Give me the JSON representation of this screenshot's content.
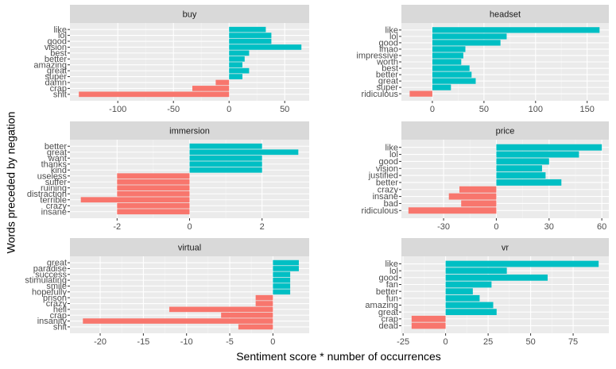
{
  "axis_titles": {
    "x": "Sentiment score * number of occurrences",
    "y": "Words preceded by negation"
  },
  "colors": {
    "positive": "#00BFC4",
    "negative": "#F8766D",
    "panel_bg": "#EBEBEB",
    "strip_bg": "#D9D9D9",
    "grid_major": "#FFFFFF",
    "tick_text": "#4D4D4D"
  },
  "chart_data": [
    {
      "type": "bar",
      "orientation": "horizontal",
      "title": "buy",
      "categories": [
        "like",
        "lol",
        "good",
        "vision",
        "best",
        "better",
        "amazing",
        "great",
        "super",
        "damn",
        "crap",
        "shit"
      ],
      "values": [
        33,
        38,
        38,
        65,
        18,
        14,
        12,
        18,
        12,
        -12,
        -33,
        -135
      ],
      "xlim": [
        -143,
        72
      ],
      "xticks": [
        -100,
        -50,
        0,
        50
      ]
    },
    {
      "type": "bar",
      "orientation": "horizontal",
      "title": "headset",
      "categories": [
        "like",
        "lol",
        "good",
        "lmao",
        "impressive",
        "worth",
        "best",
        "better",
        "great",
        "super",
        "ridiculous"
      ],
      "values": [
        162,
        72,
        66,
        32,
        30,
        28,
        36,
        38,
        42,
        18,
        -22
      ],
      "xlim": [
        -30,
        171
      ],
      "xticks": [
        0,
        50,
        100,
        150
      ]
    },
    {
      "type": "bar",
      "orientation": "horizontal",
      "title": "immersion",
      "categories": [
        "better",
        "great",
        "want",
        "thanks",
        "kind",
        "useless",
        "suffer",
        "ruining",
        "distraction",
        "terrible",
        "crazy",
        "insane"
      ],
      "values": [
        2,
        3,
        2,
        2,
        2,
        -2,
        -2,
        -2,
        -2,
        -3,
        -2,
        -2
      ],
      "xlim": [
        -3.3,
        3.3
      ],
      "xticks": [
        -2,
        0,
        2
      ]
    },
    {
      "type": "bar",
      "orientation": "horizontal",
      "title": "price",
      "categories": [
        "like",
        "lol",
        "good",
        "vision",
        "justified",
        "better",
        "crazy",
        "insane",
        "bad",
        "ridiculous"
      ],
      "values": [
        60,
        47,
        30,
        26,
        28,
        37,
        -21,
        -27,
        -20,
        -50
      ],
      "xlim": [
        -54,
        64
      ],
      "xticks": [
        -30,
        0,
        30,
        60
      ]
    },
    {
      "type": "bar",
      "orientation": "horizontal",
      "title": "virtual",
      "categories": [
        "great",
        "paradise",
        "success",
        "stimulating",
        "smile",
        "hopefully",
        "prison",
        "crazy",
        "hell",
        "crap",
        "insanity",
        "shit"
      ],
      "values": [
        3,
        3,
        2,
        2,
        2,
        2,
        -2,
        -2,
        -12,
        -6,
        -22,
        -4
      ],
      "xlim": [
        -23.5,
        4.2
      ],
      "xticks": [
        -20,
        -15,
        -10,
        -5,
        0
      ]
    },
    {
      "type": "bar",
      "orientation": "horizontal",
      "title": "vr",
      "categories": [
        "like",
        "lol",
        "good",
        "fan",
        "better",
        "fun",
        "amazing",
        "great",
        "crap",
        "dead"
      ],
      "values": [
        90,
        36,
        60,
        27,
        16,
        20,
        28,
        30,
        -20,
        -20
      ],
      "xlim": [
        -26,
        96
      ],
      "xticks": [
        -25,
        0,
        25,
        50,
        75
      ]
    }
  ]
}
